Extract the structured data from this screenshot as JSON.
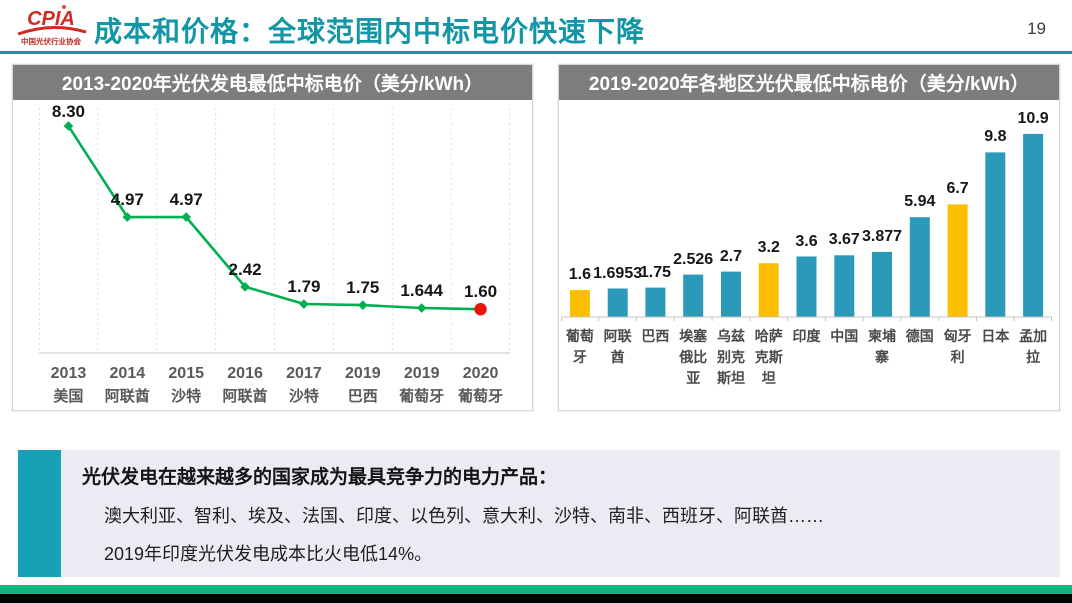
{
  "header": {
    "logo_text": "CPIA",
    "logo_subtext": "中国光伏行业协会",
    "title": "成本和价格：全球范围内中标电价快速下降",
    "page_number": "19"
  },
  "chart_data": [
    {
      "type": "line",
      "title": "2013-2020年光伏发电最低中标电价（美分/kWh）",
      "categories": [
        {
          "year": "2013",
          "country": "美国"
        },
        {
          "year": "2014",
          "country": "阿联酋"
        },
        {
          "year": "2015",
          "country": "沙特"
        },
        {
          "year": "2016",
          "country": "阿联酋"
        },
        {
          "year": "2017",
          "country": "沙特"
        },
        {
          "year": "2019",
          "country": "巴西"
        },
        {
          "year": "2019",
          "country": "葡萄牙"
        },
        {
          "year": "2020",
          "country": "葡萄牙"
        }
      ],
      "values": [
        8.3,
        4.97,
        4.97,
        2.42,
        1.79,
        1.75,
        1.644,
        1.6
      ],
      "labels": [
        "8.30",
        "4.97",
        "4.97",
        "2.42",
        "1.79",
        "1.75",
        "1.644",
        "1.60"
      ],
      "ylim": [
        0,
        9.3
      ],
      "grid": "vertical-dashed",
      "line_color": "#00b050",
      "marker_color": "#00b050",
      "last_point_color": "#e8150d",
      "legend": "none"
    },
    {
      "type": "bar",
      "title": "2019-2020年各地区光伏最低中标电价（美分/kWh）",
      "categories": [
        "葡萄牙",
        "阿联酋",
        "巴西",
        "埃塞俄比亚",
        "乌兹别克斯坦",
        "哈萨克斯坦",
        "印度",
        "中国",
        "柬埔寨",
        "德国",
        "匈牙利",
        "日本",
        "孟加拉"
      ],
      "values": [
        1.6,
        1.6953,
        1.75,
        2.526,
        2.7,
        3.2,
        3.6,
        3.67,
        3.877,
        5.94,
        6.7,
        9.8,
        10.9
      ],
      "labels": [
        "1.6",
        "1.6953",
        "1.75",
        "2.526",
        "2.7",
        "3.2",
        "3.6",
        "3.67",
        "3.877",
        "5.94",
        "6.7",
        "9.8",
        "10.9"
      ],
      "highlight_indices": [
        0,
        5,
        10
      ],
      "ylim": [
        0,
        12
      ],
      "grid": "off",
      "bar_color": "#2b9ab8",
      "highlight_color": "#fcbf00",
      "legend": "none"
    }
  ],
  "summary": {
    "heading": "光伏发电在越来越多的国家成为最具竞争力的电力产品：",
    "countries": "澳大利亚、智利、埃及、法国、印度、以色列、意大利、沙特、南非、西班牙、阿联酋……",
    "india_note": "2019年印度光伏发电成本比火电低14%。"
  },
  "colors": {
    "header_teal": "#1296a6",
    "logo_red": "#cf2b24",
    "title_bar_gray": "#7d7d7d",
    "axis_gray": "#c4c4c4",
    "grid_gray": "#dedede",
    "summary_bg": "#ebecf3",
    "summary_accent": "#18a0b5",
    "footer_green": "#0db97e",
    "footer_black": "#000000"
  }
}
